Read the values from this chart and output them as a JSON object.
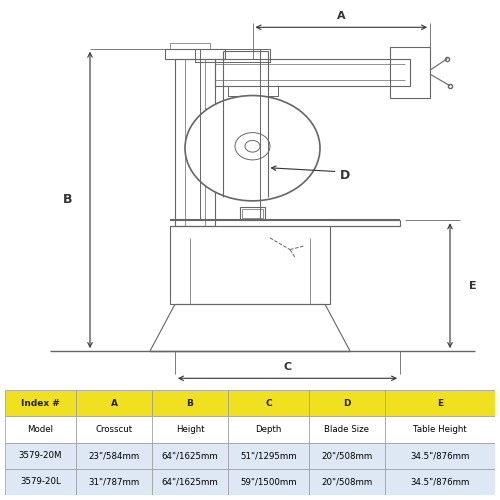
{
  "bg_color": "#ffffff",
  "line_color": "#666666",
  "dim_color": "#333333",
  "table_header_bg": "#f0e020",
  "table_row_white": "#ffffff",
  "table_row_blue": "#dde8f4",
  "table_header_color": "#222200",
  "table_data_color": "#000000",
  "table_data": {
    "headers": [
      "Index #",
      "A",
      "B",
      "C",
      "D",
      "E"
    ],
    "rows": [
      [
        "Model",
        "Crosscut",
        "Height",
        "Depth",
        "Blade Size",
        "Table Height"
      ],
      [
        "3579-20M",
        "23\"/584mm",
        "64\"/1625mm",
        "51\"/1295mm",
        "20\"/508mm",
        "34.5\"/876mm"
      ],
      [
        "3579-20L",
        "31\"/787mm",
        "64\"/1625mm",
        "59\"/1500mm",
        "20\"/508mm",
        "34.5\"/876mm"
      ]
    ]
  }
}
